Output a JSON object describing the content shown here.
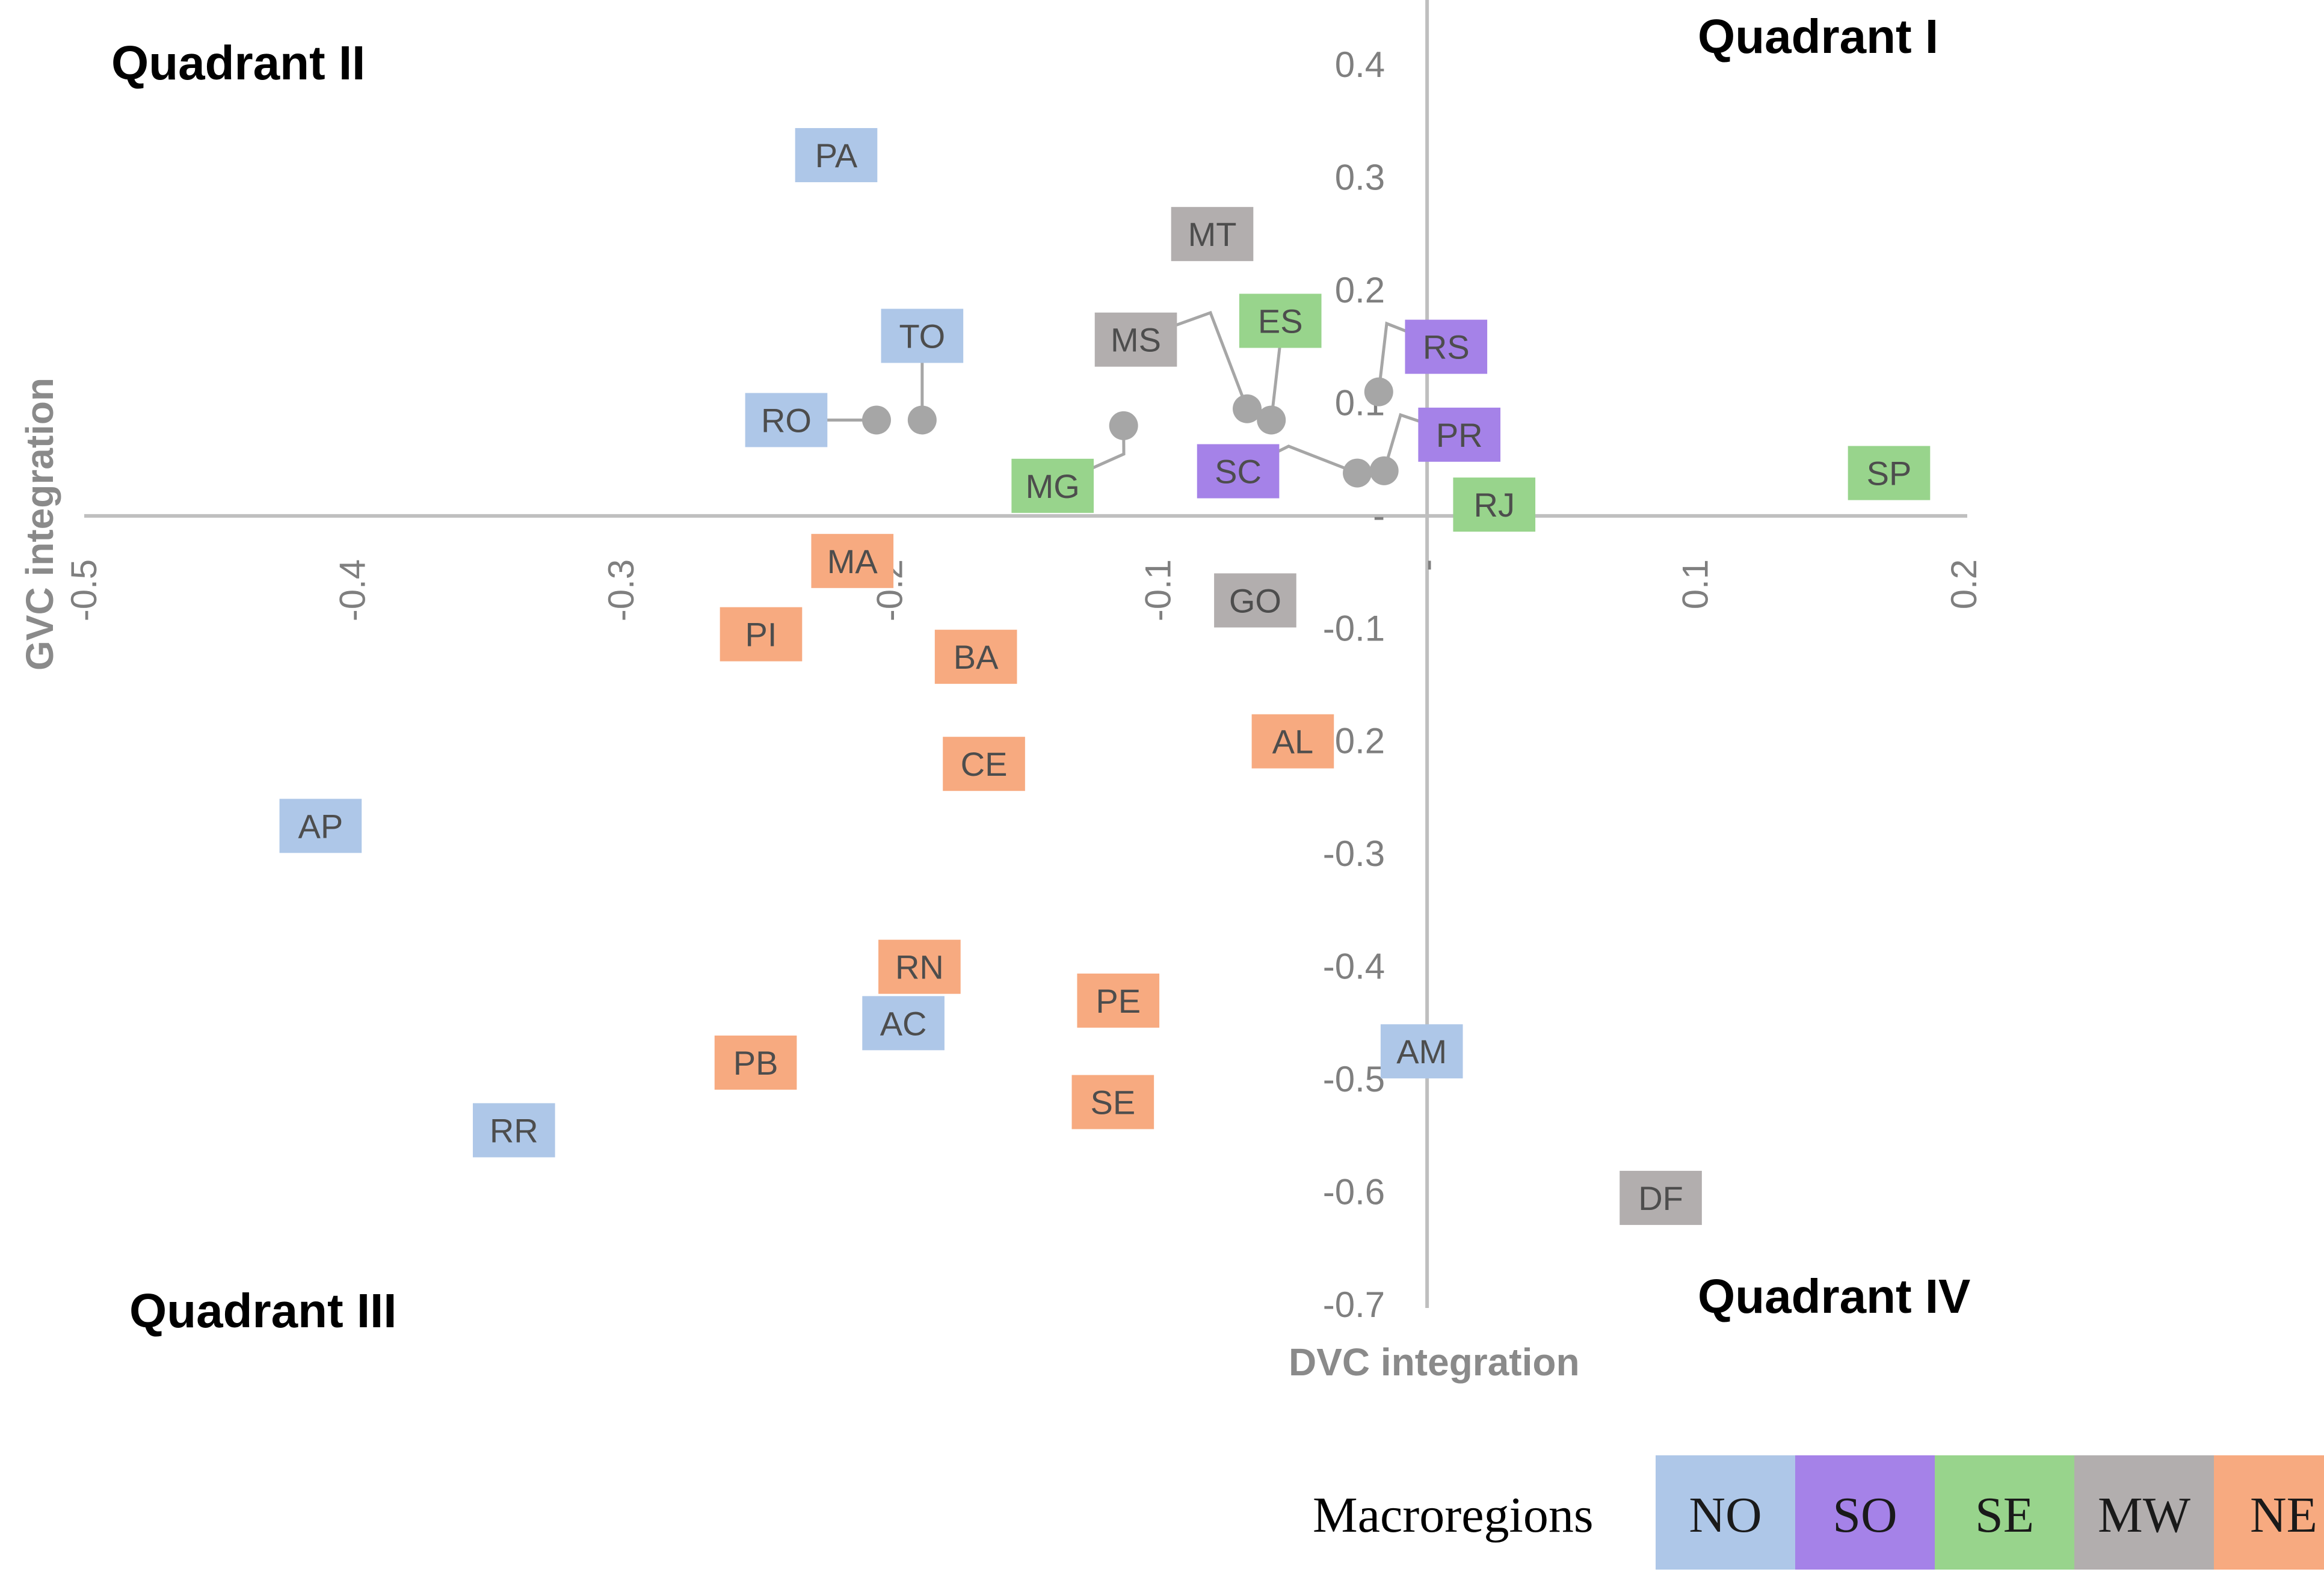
{
  "chart_data": {
    "type": "scatter",
    "xlabel": "DVC integration",
    "ylabel": "GVC integration",
    "xlim": [
      -0.5,
      0.2
    ],
    "ylim": [
      -0.7,
      0.4
    ],
    "x_ticks": [
      "-0.5",
      "-0.4",
      "-0.3",
      "-0.2",
      "-0.1",
      "-",
      "0.1",
      "0.2"
    ],
    "x_tick_values": [
      -0.5,
      -0.4,
      -0.3,
      -0.2,
      -0.1,
      0,
      0.1,
      0.2
    ],
    "y_ticks": [
      "0.4",
      "0.3",
      "0.2",
      "0.1",
      "-",
      "-0.1",
      "-0.2",
      "-0.3",
      "-0.4",
      "-0.5",
      "-0.6",
      "-0.7"
    ],
    "y_tick_values": [
      0.4,
      0.3,
      0.2,
      0.1,
      0,
      -0.1,
      -0.2,
      -0.3,
      -0.4,
      -0.5,
      -0.6,
      -0.7
    ],
    "quadrants": {
      "q1": "Quadrant I",
      "q2": "Quadrant II",
      "q3": "Quadrant III",
      "q4": "Quadrant IV"
    },
    "legend": {
      "title": "Macroregions",
      "entries": [
        {
          "code": "NO",
          "color": "#aec7e8"
        },
        {
          "code": "SO",
          "color": "#a582e8"
        },
        {
          "code": "SE",
          "color": "#98d48c"
        },
        {
          "code": "MW",
          "color": "#b2aeae"
        },
        {
          "code": "NE",
          "color": "#f7aa80"
        }
      ]
    },
    "colors": {
      "NO": "#aec7e8",
      "SO": "#a582e8",
      "SE": "#98d48c",
      "MW": "#b2aeae",
      "NE": "#f7aa80",
      "axis": "#bfbfbf",
      "marker": "#a6a6a6"
    },
    "points": [
      {
        "label": "PA",
        "region": "NO",
        "x": -0.22,
        "y": 0.32
      },
      {
        "label": "MT",
        "region": "MW",
        "x": -0.08,
        "y": 0.25
      },
      {
        "label": "ES",
        "region": "SE",
        "x": -0.058,
        "y": 0.085,
        "callout": true
      },
      {
        "label": "MS",
        "region": "MW",
        "x": -0.067,
        "y": 0.095,
        "callout": true
      },
      {
        "label": "RS",
        "region": "SO",
        "x": -0.018,
        "y": 0.11,
        "callout": true
      },
      {
        "label": "TO",
        "region": "NO",
        "x": -0.188,
        "y": 0.085,
        "callout": true
      },
      {
        "label": "RO",
        "region": "NO",
        "x": -0.205,
        "y": 0.085,
        "callout": true
      },
      {
        "label": "MG",
        "region": "SE",
        "x": -0.113,
        "y": 0.08,
        "callout": true
      },
      {
        "label": "PR",
        "region": "SO",
        "x": -0.016,
        "y": 0.04,
        "callout": true
      },
      {
        "label": "SC",
        "region": "SO",
        "x": -0.026,
        "y": 0.038,
        "callout": true
      },
      {
        "label": "RJ",
        "region": "SE",
        "x": 0.025,
        "y": 0.01
      },
      {
        "label": "SP",
        "region": "SE",
        "x": 0.172,
        "y": 0.038
      },
      {
        "label": "MA",
        "region": "NE",
        "x": -0.214,
        "y": -0.04
      },
      {
        "label": "GO",
        "region": "MW",
        "x": -0.064,
        "y": -0.075
      },
      {
        "label": "PI",
        "region": "NE",
        "x": -0.248,
        "y": -0.105
      },
      {
        "label": "BA",
        "region": "NE",
        "x": -0.168,
        "y": -0.125
      },
      {
        "label": "AL",
        "region": "NE",
        "x": -0.05,
        "y": -0.2
      },
      {
        "label": "CE",
        "region": "NE",
        "x": -0.165,
        "y": -0.22
      },
      {
        "label": "AP",
        "region": "NO",
        "x": -0.412,
        "y": -0.275
      },
      {
        "label": "RN",
        "region": "NE",
        "x": -0.189,
        "y": -0.4
      },
      {
        "label": "PE",
        "region": "NE",
        "x": -0.115,
        "y": -0.43
      },
      {
        "label": "AC",
        "region": "NO",
        "x": -0.195,
        "y": -0.45
      },
      {
        "label": "PB",
        "region": "NE",
        "x": -0.25,
        "y": -0.485
      },
      {
        "label": "AM",
        "region": "NO",
        "x": -0.002,
        "y": -0.475
      },
      {
        "label": "SE",
        "region": "NE",
        "x": -0.117,
        "y": -0.52
      },
      {
        "label": "RR",
        "region": "NO",
        "x": -0.34,
        "y": -0.545
      },
      {
        "label": "DF",
        "region": "MW",
        "x": 0.087,
        "y": -0.605
      }
    ]
  }
}
